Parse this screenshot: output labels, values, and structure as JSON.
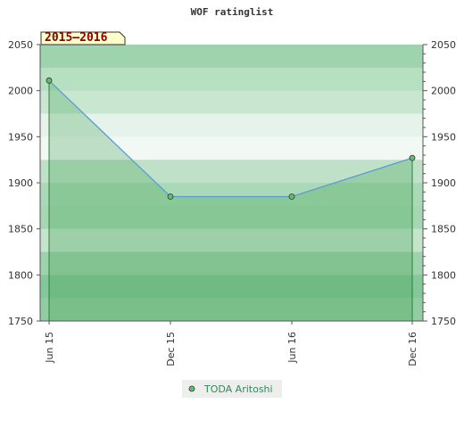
{
  "chart_data": {
    "type": "line",
    "title": "WOF ratinglist",
    "season_label": "2015–2016",
    "xlabel": "",
    "ylabel": "",
    "ylim": [
      1750,
      2050
    ],
    "y_ticks": [
      1750,
      1800,
      1850,
      1900,
      1950,
      2000,
      2050
    ],
    "x_ticks": [
      "Jun 15",
      "Dec 15",
      "Jun 16",
      "Dec 16"
    ],
    "series": [
      {
        "name": "TODA Aritoshi",
        "x": [
          "Jun 15",
          "Dec 15",
          "Jun 16",
          "Dec 16"
        ],
        "values": [
          2011,
          1885,
          1885,
          1927
        ]
      }
    ],
    "grid": true,
    "legend_position": "bottom-center",
    "colors": {
      "line": "#5b9bd5",
      "marker": "#5fbf6f",
      "area": "#3a9d4a"
    }
  }
}
